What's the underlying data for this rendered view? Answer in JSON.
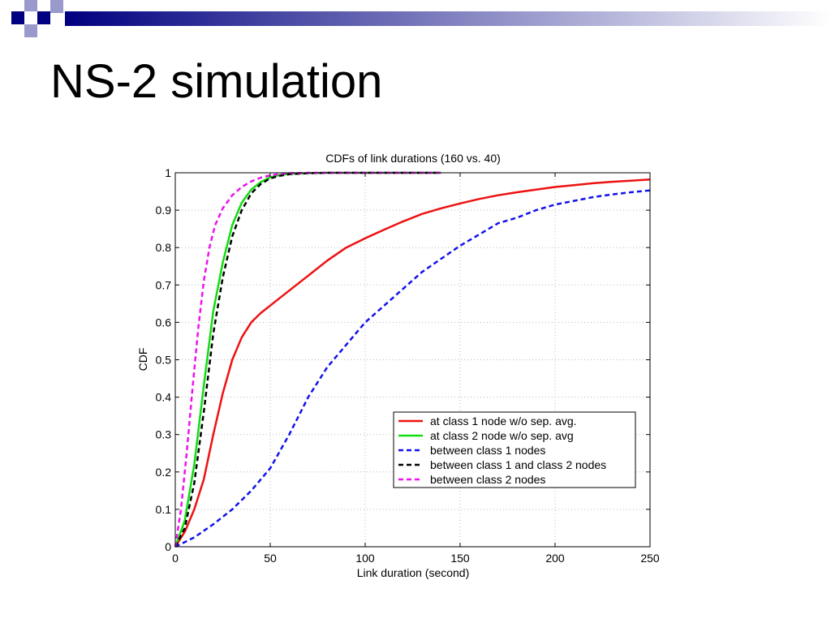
{
  "slide": {
    "title": "NS-2 simulation",
    "accent_dark": "#000080",
    "accent_light": "#9999cc"
  },
  "chart_data": {
    "type": "line",
    "title": "CDFs of link durations (160 vs. 40)",
    "xlabel": "Link duration (second)",
    "ylabel": "CDF",
    "xlim": [
      0,
      250
    ],
    "ylim": [
      0,
      1
    ],
    "xticks": [
      0,
      50,
      100,
      150,
      200,
      250
    ],
    "yticks": [
      0,
      0.1,
      0.2,
      0.3,
      0.4,
      0.5,
      0.6,
      0.7,
      0.8,
      0.9,
      1
    ],
    "ytick_labels": [
      "0",
      "0.1",
      "0.2",
      "0.3",
      "0.4",
      "0.5",
      "0.6",
      "0.7",
      "0.8",
      "0.9",
      "1"
    ],
    "grid": true,
    "legend_position": "bottom-right",
    "series": [
      {
        "name": "at class 1 node w/o sep. avg.",
        "color": "#ee1111",
        "dash": "solid",
        "x": [
          0,
          5,
          10,
          15,
          20,
          25,
          30,
          35,
          40,
          45,
          50,
          60,
          70,
          80,
          90,
          100,
          110,
          120,
          130,
          140,
          150,
          160,
          170,
          180,
          190,
          200,
          210,
          220,
          230,
          240,
          250
        ],
        "y": [
          0,
          0.04,
          0.1,
          0.18,
          0.3,
          0.41,
          0.5,
          0.56,
          0.6,
          0.625,
          0.645,
          0.685,
          0.725,
          0.765,
          0.8,
          0.825,
          0.848,
          0.87,
          0.89,
          0.905,
          0.918,
          0.93,
          0.94,
          0.948,
          0.955,
          0.962,
          0.967,
          0.972,
          0.976,
          0.979,
          0.982
        ]
      },
      {
        "name": "at class 2 node w/o sep. avg",
        "color": "#11dd11",
        "dash": "solid",
        "x": [
          0,
          5,
          10,
          15,
          20,
          25,
          30,
          35,
          40,
          45,
          50,
          55,
          60,
          70,
          80,
          100,
          120,
          140
        ],
        "y": [
          0,
          0.07,
          0.22,
          0.43,
          0.63,
          0.76,
          0.86,
          0.92,
          0.955,
          0.975,
          0.988,
          0.994,
          0.997,
          0.999,
          1,
          1,
          1,
          1
        ]
      },
      {
        "name": "between class 1 nodes",
        "color": "#1111ee",
        "dash": "dashed",
        "x": [
          0,
          10,
          20,
          30,
          40,
          50,
          60,
          70,
          80,
          90,
          100,
          110,
          120,
          130,
          140,
          150,
          160,
          170,
          180,
          190,
          200,
          210,
          220,
          230,
          240,
          250
        ],
        "y": [
          0,
          0.025,
          0.06,
          0.1,
          0.15,
          0.21,
          0.3,
          0.4,
          0.48,
          0.54,
          0.6,
          0.645,
          0.69,
          0.735,
          0.77,
          0.805,
          0.835,
          0.865,
          0.88,
          0.9,
          0.915,
          0.925,
          0.935,
          0.942,
          0.948,
          0.953
        ]
      },
      {
        "name": "between class 1 and class 2 nodes",
        "color": "#000000",
        "dash": "dashed",
        "x": [
          0,
          5,
          10,
          15,
          20,
          25,
          30,
          35,
          40,
          45,
          50,
          55,
          60,
          70,
          80,
          100,
          120,
          140
        ],
        "y": [
          0,
          0.05,
          0.17,
          0.36,
          0.57,
          0.72,
          0.83,
          0.9,
          0.945,
          0.97,
          0.985,
          0.992,
          0.996,
          0.999,
          1,
          1,
          1,
          1
        ]
      },
      {
        "name": "between class 2 nodes",
        "color": "#ee11ee",
        "dash": "dashed",
        "x": [
          0,
          3,
          6,
          9,
          12,
          15,
          18,
          21,
          25,
          30,
          35,
          40,
          45,
          50,
          55,
          60,
          70,
          80,
          100,
          120,
          140
        ],
        "y": [
          0,
          0.1,
          0.25,
          0.42,
          0.58,
          0.71,
          0.8,
          0.86,
          0.905,
          0.94,
          0.962,
          0.977,
          0.987,
          0.993,
          0.997,
          0.999,
          1,
          1,
          1,
          1,
          1
        ]
      }
    ]
  }
}
